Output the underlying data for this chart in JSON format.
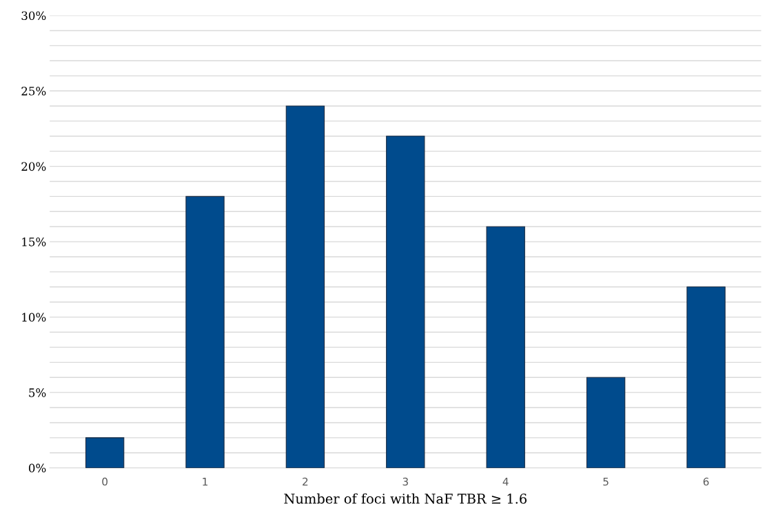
{
  "chart_data": {
    "type": "bar",
    "xlabel": "Number of foci with NaF TBR ≥ 1.6",
    "categories": [
      "0",
      "1",
      "2",
      "3",
      "4",
      "5",
      "6"
    ],
    "values": [
      2,
      18,
      24,
      22,
      16,
      6,
      12
    ],
    "color": "#004b8d",
    "ylim": [
      0,
      30
    ],
    "yticks": [
      {
        "value": 0,
        "label": "0%"
      },
      {
        "value": 1,
        "label": null
      },
      {
        "value": 2,
        "label": null
      },
      {
        "value": 3,
        "label": null
      },
      {
        "value": 4,
        "label": null
      },
      {
        "value": 5,
        "label": "5%"
      },
      {
        "value": 6,
        "label": null
      },
      {
        "value": 7,
        "label": null
      },
      {
        "value": 8,
        "label": null
      },
      {
        "value": 9,
        "label": null
      },
      {
        "value": 10,
        "label": "10%"
      },
      {
        "value": 11,
        "label": null
      },
      {
        "value": 12,
        "label": null
      },
      {
        "value": 13,
        "label": null
      },
      {
        "value": 14,
        "label": null
      },
      {
        "value": 15,
        "label": "15%"
      },
      {
        "value": 16,
        "label": null
      },
      {
        "value": 17,
        "label": null
      },
      {
        "value": 18,
        "label": null
      },
      {
        "value": 19,
        "label": null
      },
      {
        "value": 20,
        "label": "20%"
      },
      {
        "value": 21,
        "label": null
      },
      {
        "value": 22,
        "label": null
      },
      {
        "value": 23,
        "label": null
      },
      {
        "value": 24,
        "label": null
      },
      {
        "value": 25,
        "label": "25%"
      },
      {
        "value": 26,
        "label": null
      },
      {
        "value": 27,
        "label": null
      },
      {
        "value": 28,
        "label": null
      },
      {
        "value": 29,
        "label": null
      },
      {
        "value": 30,
        "label": "30%"
      }
    ],
    "grid": "y"
  }
}
